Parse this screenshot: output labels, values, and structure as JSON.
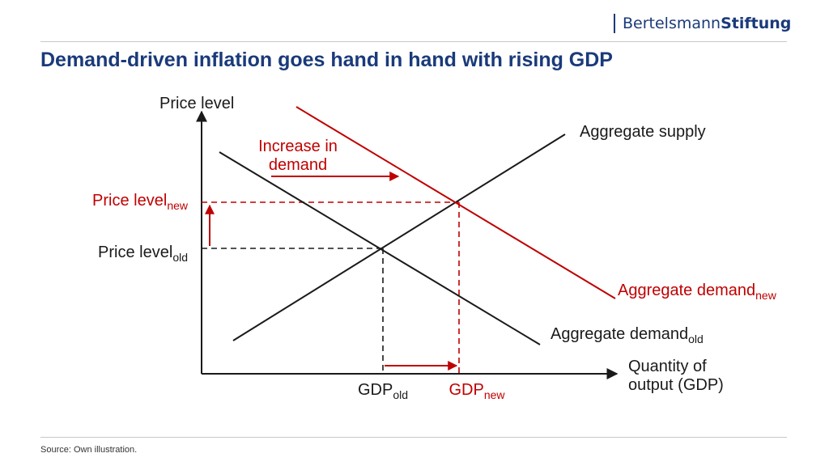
{
  "brand": {
    "name_regular": "Bertelsmann",
    "name_bold": "Stiftung",
    "color": "#1a3a7a"
  },
  "title": "Demand-driven inflation goes hand in hand with rising GDP",
  "source": "Source: Own illustration.",
  "colors": {
    "black": "#1a1a1a",
    "red": "#c00000"
  },
  "diagram": {
    "y_axis_label": "Price level",
    "x_axis_label_line1": "Quantity of",
    "x_axis_label_line2": "output (GDP)",
    "supply_label": "Aggregate supply",
    "demand_old_label": "Aggregate demand",
    "demand_old_sub": "old",
    "demand_new_label": "Aggregate demand",
    "demand_new_sub": "new",
    "price_new_label": "Price level",
    "price_new_sub": "new",
    "price_old_label": "Price level",
    "price_old_sub": "old",
    "gdp_old_label": "GDP",
    "gdp_old_sub": "old",
    "gdp_new_label": "GDP",
    "gdp_new_sub": "new",
    "increase_line1": "Increase in",
    "increase_line2": "demand"
  }
}
